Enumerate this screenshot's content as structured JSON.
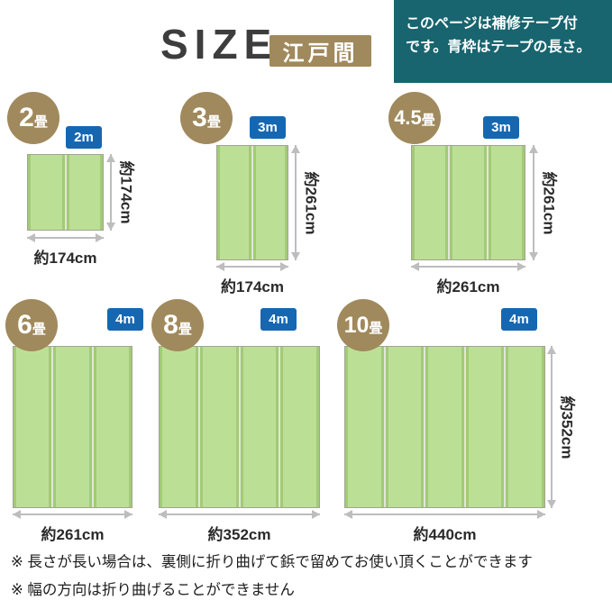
{
  "header": {
    "title": "SIZE",
    "region_badge": "江戸間",
    "note_line1": "このページは補修テープ付",
    "note_line2": "です。青枠はテープの長さ。"
  },
  "colors": {
    "brown": "#a0895c",
    "blue": "#1567b2",
    "teal": "#18646f",
    "green": "#bcdf96",
    "green_edge": "#a2cb77"
  },
  "sizes": [
    {
      "num": "2",
      "unit": "畳",
      "tape": "2m",
      "width": "約174cm",
      "height": "約174cm",
      "panels": 2
    },
    {
      "num": "3",
      "unit": "畳",
      "tape": "3m",
      "width": "約174cm",
      "height": "約261cm",
      "panels": 2
    },
    {
      "num": "4.5",
      "unit": "畳",
      "tape": "3m",
      "width": "約261cm",
      "height": "約261cm",
      "panels": 3
    },
    {
      "num": "6",
      "unit": "畳",
      "tape": "4m",
      "width": "約261cm",
      "height": "",
      "panels": 3
    },
    {
      "num": "8",
      "unit": "畳",
      "tape": "4m",
      "width": "約352cm",
      "height": "",
      "panels": 4
    },
    {
      "num": "10",
      "unit": "畳",
      "tape": "4m",
      "width": "約440cm",
      "height": "約352cm",
      "panels": 5
    }
  ],
  "footnotes": [
    "※ 長さが長い場合は、裏側に折り曲げて鋲で留めてお使い頂くことができます",
    "※ 幅の方向は折り曲げることができません"
  ]
}
